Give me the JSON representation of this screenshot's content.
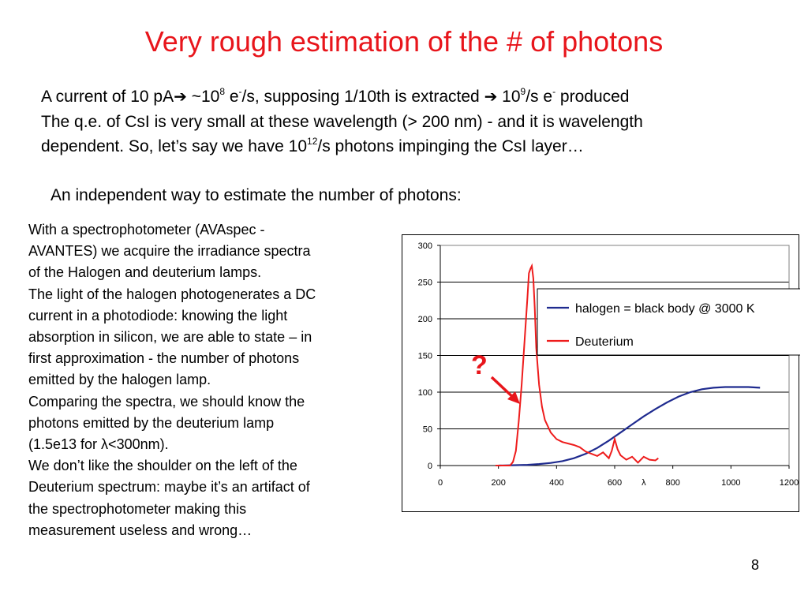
{
  "slide": {
    "title": "Very rough estimation of the # of photons",
    "intro": {
      "line1": {
        "a": "A current of 10 pA",
        "b": " ~10",
        "b_sup": "8",
        "c": " e",
        "c_sup": "-",
        "d": "/s, supposing 1/10th is extracted ",
        "e": " 10",
        "e_sup": "9",
        "f": "/s e",
        "f_sup": "-",
        "g": " produced"
      },
      "line2": "The q.e. of CsI is very small at these wavelength (> 200 nm) - and it is wavelength",
      "line3": {
        "a": "dependent. So, let’s say we have 10",
        "a_sup": "12",
        "b": "/s photons impinging the CsI layer…"
      },
      "arrow_glyph": "➔"
    },
    "subheading": "An independent way to estimate the number of photons:",
    "left_column": [
      "With a spectrophotometer (AVAspec -",
      "AVANTES) we acquire the irradiance spectra",
      "of the Halogen and deuterium lamps.",
      "The light of the halogen photogenerates a DC",
      "current in a photodiode: knowing the light",
      "absorption in silicon, we are able to state – in",
      "first approximation -  the number of photons",
      "emitted by the halogen lamp.",
      "Comparing the spectra, we should know the",
      "photons emitted by the deuterium lamp",
      "(1.5e13 for λ<300nm).",
      "We don’t like the shoulder on the left of the",
      "Deuterium spectrum: maybe it’s an artifact of",
      "the spectrophotometer making this",
      "measurement useless and wrong…"
    ],
    "annotation": "?",
    "page_number": "8"
  },
  "colors": {
    "title": "#e8151b",
    "halogen": "#1f2b8f",
    "deuterium": "#ee1c1c",
    "annotation": "#e8151b"
  },
  "chart_data": {
    "type": "line",
    "xlabel": "λ",
    "ylabel": "",
    "xlim": [
      0,
      1200
    ],
    "ylim": [
      0,
      300
    ],
    "xticks": [
      0,
      200,
      400,
      600,
      800,
      1000,
      1200
    ],
    "yticks": [
      0,
      50,
      100,
      150,
      200,
      250,
      300
    ],
    "grid": "horizontal",
    "legend_placement": "right",
    "series": [
      {
        "name": "halogen = black body @ 3000 K",
        "x": [
          200,
          260,
          300,
          340,
          380,
          420,
          460,
          500,
          540,
          580,
          620,
          660,
          700,
          740,
          780,
          820,
          860,
          900,
          940,
          980,
          1020,
          1060,
          1100
        ],
        "y": [
          0,
          0.5,
          1,
          2,
          3.5,
          6,
          10,
          16,
          24,
          34,
          45,
          56,
          67,
          77,
          86,
          94,
          100,
          104,
          106,
          107,
          107,
          107,
          106
        ]
      },
      {
        "name": "Deuterium",
        "x": [
          190,
          240,
          250,
          260,
          270,
          280,
          290,
          300,
          305,
          310,
          315,
          320,
          325,
          330,
          340,
          350,
          360,
          380,
          400,
          420,
          440,
          460,
          480,
          500,
          520,
          540,
          560,
          570,
          580,
          590,
          600,
          610,
          620,
          640,
          660,
          680,
          700,
          720,
          740,
          750
        ],
        "y": [
          0,
          0,
          5,
          20,
          60,
          110,
          170,
          230,
          262,
          268,
          272,
          255,
          215,
          160,
          110,
          80,
          62,
          45,
          36,
          32,
          30,
          28,
          25,
          19,
          16,
          13,
          18,
          14,
          10,
          20,
          36,
          22,
          14,
          8,
          12,
          4,
          12,
          8,
          7,
          10
        ]
      }
    ]
  }
}
